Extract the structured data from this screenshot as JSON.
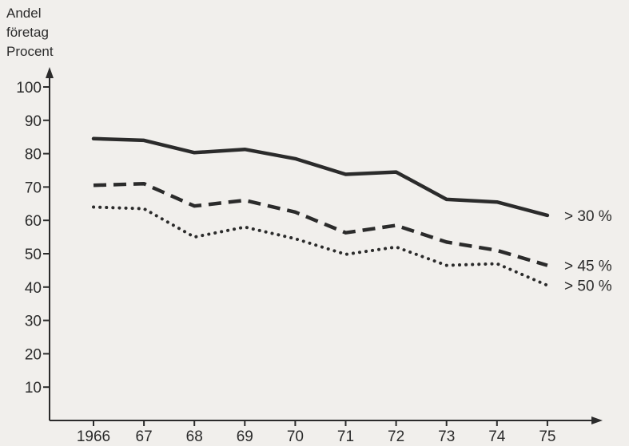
{
  "chart_data": {
    "type": "line",
    "ylabel_lines": [
      "Andel",
      "företag",
      "Procent"
    ],
    "xlabel": "",
    "x": [
      1966,
      1967,
      1968,
      1969,
      1970,
      1971,
      1972,
      1973,
      1974,
      1975
    ],
    "x_tick_labels": [
      "1966",
      "67",
      "68",
      "69",
      "70",
      "71",
      "72",
      "73",
      "74",
      "75"
    ],
    "y_ticks": [
      10,
      20,
      30,
      40,
      50,
      60,
      70,
      80,
      90,
      100
    ],
    "ylim": [
      0,
      100
    ],
    "grid": false,
    "legend": "none",
    "series": [
      {
        "name": "> 30 %",
        "style": "solid",
        "values": [
          84.5,
          84,
          80.3,
          81.3,
          78.5,
          73.8,
          74.5,
          66.3,
          65.5,
          61.5
        ]
      },
      {
        "name": "> 45 %",
        "style": "dashed",
        "values": [
          70.5,
          71,
          64.3,
          66,
          62.5,
          56.3,
          58.5,
          53.5,
          51,
          46.5
        ]
      },
      {
        "name": "> 50 %",
        "style": "dotted",
        "values": [
          64,
          63.5,
          55,
          58,
          54.5,
          49.8,
          52,
          46.5,
          47,
          40.5
        ]
      }
    ],
    "colors": {
      "ink": "#2b2b2b",
      "background": "#f1efec"
    }
  }
}
